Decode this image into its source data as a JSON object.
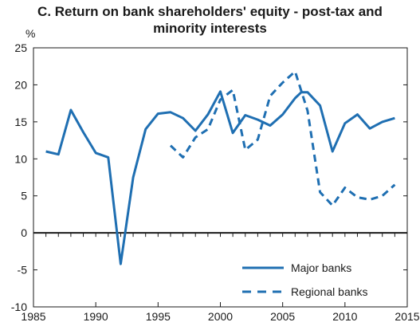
{
  "chart_data": {
    "type": "line",
    "title": "C. Return on bank shareholders' equity - post-tax and minority interests",
    "title_lines": [
      "C. Return on bank shareholders' equity - post-tax and",
      "minority interests"
    ],
    "ylabel": "%",
    "xlim": [
      1985,
      2015
    ],
    "ylim": [
      -10,
      25
    ],
    "x_ticks": [
      1985,
      1990,
      1995,
      2000,
      2005,
      2010,
      2015
    ],
    "y_ticks": [
      -10,
      -5,
      0,
      5,
      10,
      15,
      20,
      25
    ],
    "grid": false,
    "legend_position": "bottom-right",
    "series": [
      {
        "name": "Major banks",
        "style": "solid",
        "color": "#1f6fb2",
        "points": [
          [
            1986,
            11.0
          ],
          [
            1987,
            10.6
          ],
          [
            1988,
            16.6
          ],
          [
            1989,
            13.6
          ],
          [
            1990,
            10.8
          ],
          [
            1991,
            10.2
          ],
          [
            1992,
            -4.2
          ],
          [
            1993,
            7.5
          ],
          [
            1994,
            14.0
          ],
          [
            1995,
            16.1
          ],
          [
            1996,
            16.3
          ],
          [
            1997,
            15.5
          ],
          [
            1998,
            13.8
          ],
          [
            1999,
            16.0
          ],
          [
            2000,
            19.1
          ],
          [
            2001,
            13.5
          ],
          [
            2002,
            15.9
          ],
          [
            2003,
            15.3
          ],
          [
            2004,
            14.5
          ],
          [
            2005,
            16.0
          ],
          [
            2006,
            18.2
          ],
          [
            2006.5,
            19.0
          ],
          [
            2007,
            19.0
          ],
          [
            2008,
            17.2
          ],
          [
            2009,
            11.0
          ],
          [
            2010,
            14.8
          ],
          [
            2011,
            16.0
          ],
          [
            2012,
            14.1
          ],
          [
            2013,
            15.0
          ],
          [
            2014,
            15.5
          ]
        ]
      },
      {
        "name": "Regional banks",
        "style": "dashed",
        "color": "#1f6fb2",
        "points": [
          [
            1996,
            11.8
          ],
          [
            1997,
            10.2
          ],
          [
            1998,
            12.9
          ],
          [
            1999,
            14.0
          ],
          [
            2000,
            18.0
          ],
          [
            2001,
            19.3
          ],
          [
            2002,
            11.2
          ],
          [
            2003,
            12.6
          ],
          [
            2004,
            18.5
          ],
          [
            2005,
            20.3
          ],
          [
            2006,
            21.8
          ],
          [
            2007,
            16.5
          ],
          [
            2008,
            5.5
          ],
          [
            2009,
            3.7
          ],
          [
            2010,
            6.1
          ],
          [
            2011,
            4.8
          ],
          [
            2012,
            4.5
          ],
          [
            2013,
            5.0
          ],
          [
            2014,
            6.5
          ]
        ]
      }
    ]
  }
}
